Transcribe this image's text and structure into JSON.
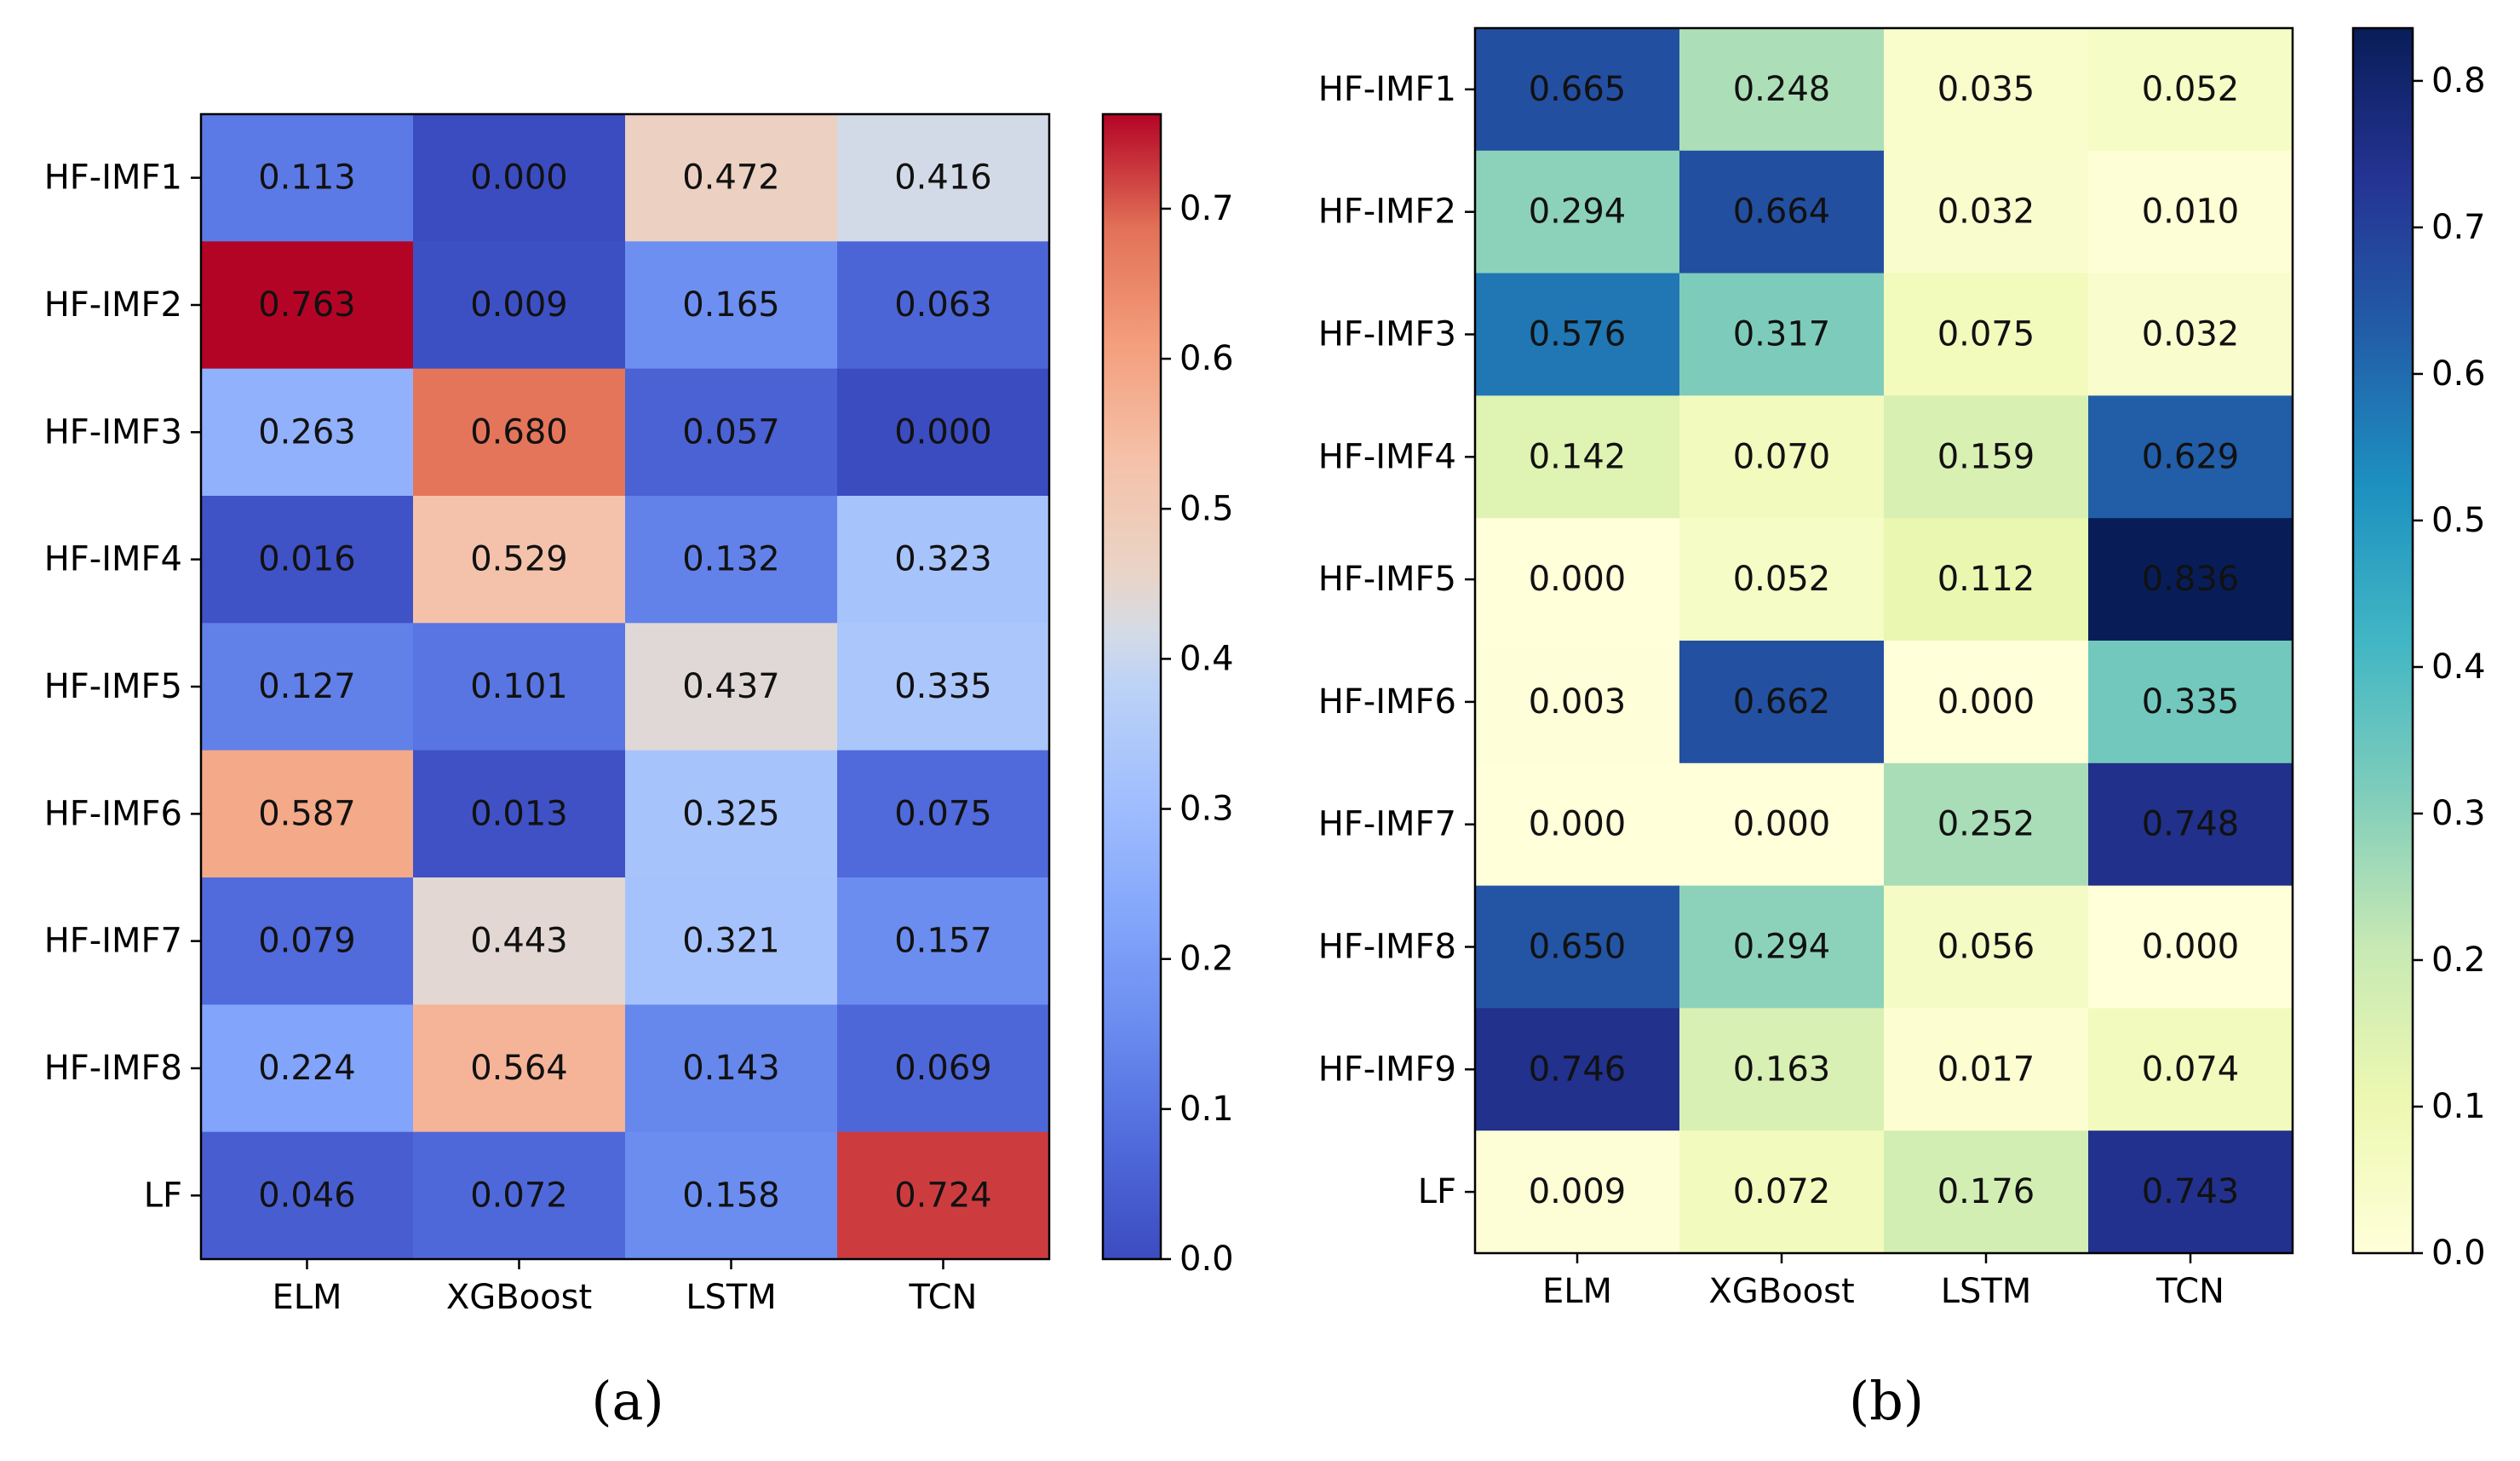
{
  "figure": {
    "panel_labels": [
      "(a)",
      "(b)"
    ]
  },
  "chart_data": [
    {
      "type": "heatmap",
      "panel": "(a)",
      "colormap": "coolwarm",
      "title": "",
      "xlabel": "",
      "ylabel": "",
      "x_categories": [
        "ELM",
        "XGBoost",
        "LSTM",
        "TCN"
      ],
      "y_categories": [
        "HF-IMF1",
        "HF-IMF2",
        "HF-IMF3",
        "HF-IMF4",
        "HF-IMF5",
        "HF-IMF6",
        "HF-IMF7",
        "HF-IMF8",
        "LF"
      ],
      "values": [
        [
          0.113,
          0.0,
          0.472,
          0.416
        ],
        [
          0.763,
          0.009,
          0.165,
          0.063
        ],
        [
          0.263,
          0.68,
          0.057,
          0.0
        ],
        [
          0.016,
          0.529,
          0.132,
          0.323
        ],
        [
          0.127,
          0.101,
          0.437,
          0.335
        ],
        [
          0.587,
          0.013,
          0.325,
          0.075
        ],
        [
          0.079,
          0.443,
          0.321,
          0.157
        ],
        [
          0.224,
          0.564,
          0.143,
          0.069
        ],
        [
          0.046,
          0.072,
          0.158,
          0.724
        ]
      ],
      "cell_labels": [
        [
          "0.113",
          "0.000",
          "0.472",
          "0.416"
        ],
        [
          "0.763",
          "0.009",
          "0.165",
          "0.063"
        ],
        [
          "0.263",
          "0.680",
          "0.057",
          "0.000"
        ],
        [
          "0.016",
          "0.529",
          "0.132",
          "0.323"
        ],
        [
          "0.127",
          "0.101",
          "0.437",
          "0.335"
        ],
        [
          "0.587",
          "0.013",
          "0.325",
          "0.075"
        ],
        [
          "0.079",
          "0.443",
          "0.321",
          "0.157"
        ],
        [
          "0.224",
          "0.564",
          "0.143",
          "0.069"
        ],
        [
          "0.046",
          "0.072",
          "0.158",
          "0.724"
        ]
      ],
      "colorbar": {
        "range": [
          0.0,
          0.763
        ],
        "ticks": [
          0.0,
          0.1,
          0.2,
          0.3,
          0.4,
          0.5,
          0.6,
          0.7
        ],
        "tick_labels": [
          "0.0",
          "0.1",
          "0.2",
          "0.3",
          "0.4",
          "0.5",
          "0.6",
          "0.7"
        ]
      }
    },
    {
      "type": "heatmap",
      "panel": "(b)",
      "colormap": "YlGnBu",
      "title": "",
      "xlabel": "",
      "ylabel": "",
      "x_categories": [
        "ELM",
        "XGBoost",
        "LSTM",
        "TCN"
      ],
      "y_categories": [
        "HF-IMF1",
        "HF-IMF2",
        "HF-IMF3",
        "HF-IMF4",
        "HF-IMF5",
        "HF-IMF6",
        "HF-IMF7",
        "HF-IMF8",
        "HF-IMF9",
        "LF"
      ],
      "values": [
        [
          0.665,
          0.248,
          0.035,
          0.052
        ],
        [
          0.294,
          0.664,
          0.032,
          0.01
        ],
        [
          0.576,
          0.317,
          0.075,
          0.032
        ],
        [
          0.142,
          0.07,
          0.159,
          0.629
        ],
        [
          0.0,
          0.052,
          0.112,
          0.836
        ],
        [
          0.003,
          0.662,
          0.0,
          0.335
        ],
        [
          0.0,
          0.0,
          0.252,
          0.748
        ],
        [
          0.65,
          0.294,
          0.056,
          0.0
        ],
        [
          0.746,
          0.163,
          0.017,
          0.074
        ],
        [
          0.009,
          0.072,
          0.176,
          0.743
        ]
      ],
      "cell_labels": [
        [
          "0.665",
          "0.248",
          "0.035",
          "0.052"
        ],
        [
          "0.294",
          "0.664",
          "0.032",
          "0.010"
        ],
        [
          "0.576",
          "0.317",
          "0.075",
          "0.032"
        ],
        [
          "0.142",
          "0.070",
          "0.159",
          "0.629"
        ],
        [
          "0.000",
          "0.052",
          "0.112",
          "0.836"
        ],
        [
          "0.003",
          "0.662",
          "0.000",
          "0.335"
        ],
        [
          "0.000",
          "0.000",
          "0.252",
          "0.748"
        ],
        [
          "0.650",
          "0.294",
          "0.056",
          "0.000"
        ],
        [
          "0.746",
          "0.163",
          "0.017",
          "0.074"
        ],
        [
          "0.009",
          "0.072",
          "0.176",
          "0.743"
        ]
      ],
      "colorbar": {
        "range": [
          0.0,
          0.836
        ],
        "ticks": [
          0.0,
          0.1,
          0.2,
          0.3,
          0.4,
          0.5,
          0.6,
          0.7,
          0.8
        ],
        "tick_labels": [
          "0.0",
          "0.1",
          "0.2",
          "0.3",
          "0.4",
          "0.5",
          "0.6",
          "0.7",
          "0.8"
        ]
      }
    }
  ]
}
